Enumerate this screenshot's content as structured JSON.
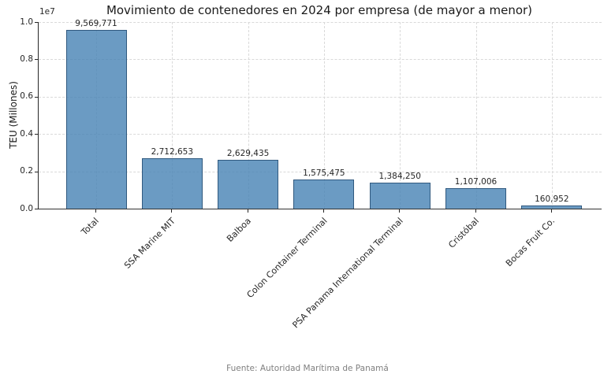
{
  "chart_data": {
    "type": "bar",
    "title": "Movimiento de contenedores en 2024 por empresa (de mayor a menor)",
    "ylabel": "TEU (Millones)",
    "xlabel": "",
    "y_offset_label": "1e7",
    "categories": [
      "Total",
      "SSA Marine MIT",
      "Balboa",
      "Colon Container Terminal",
      "PSA Panama International Terminal",
      "Cristóbal",
      "Bocas Fruit Co."
    ],
    "values": [
      9569771,
      2712653,
      2629435,
      1575475,
      1384250,
      1107006,
      160952
    ],
    "value_labels": [
      "9,569,771",
      "2,712,653",
      "2,629,435",
      "1,575,475",
      "1,384,250",
      "1,107,006",
      "160,952"
    ],
    "ylim": [
      0,
      10000000
    ],
    "y_ticks": [
      0,
      2000000,
      4000000,
      6000000,
      8000000,
      10000000
    ],
    "y_tick_labels": [
      "0.0",
      "0.2",
      "0.4",
      "0.6",
      "0.8",
      "1.0"
    ],
    "grid": true,
    "legend": false,
    "bar_color": "rgba(70, 130, 180, 0.8)",
    "bar_edge_color": "rgba(38, 77, 115, 0.85)",
    "x_tick_rotation_deg": 45
  },
  "footer": {
    "source": "Fuente: Autoridad Marítima de Panamá"
  }
}
